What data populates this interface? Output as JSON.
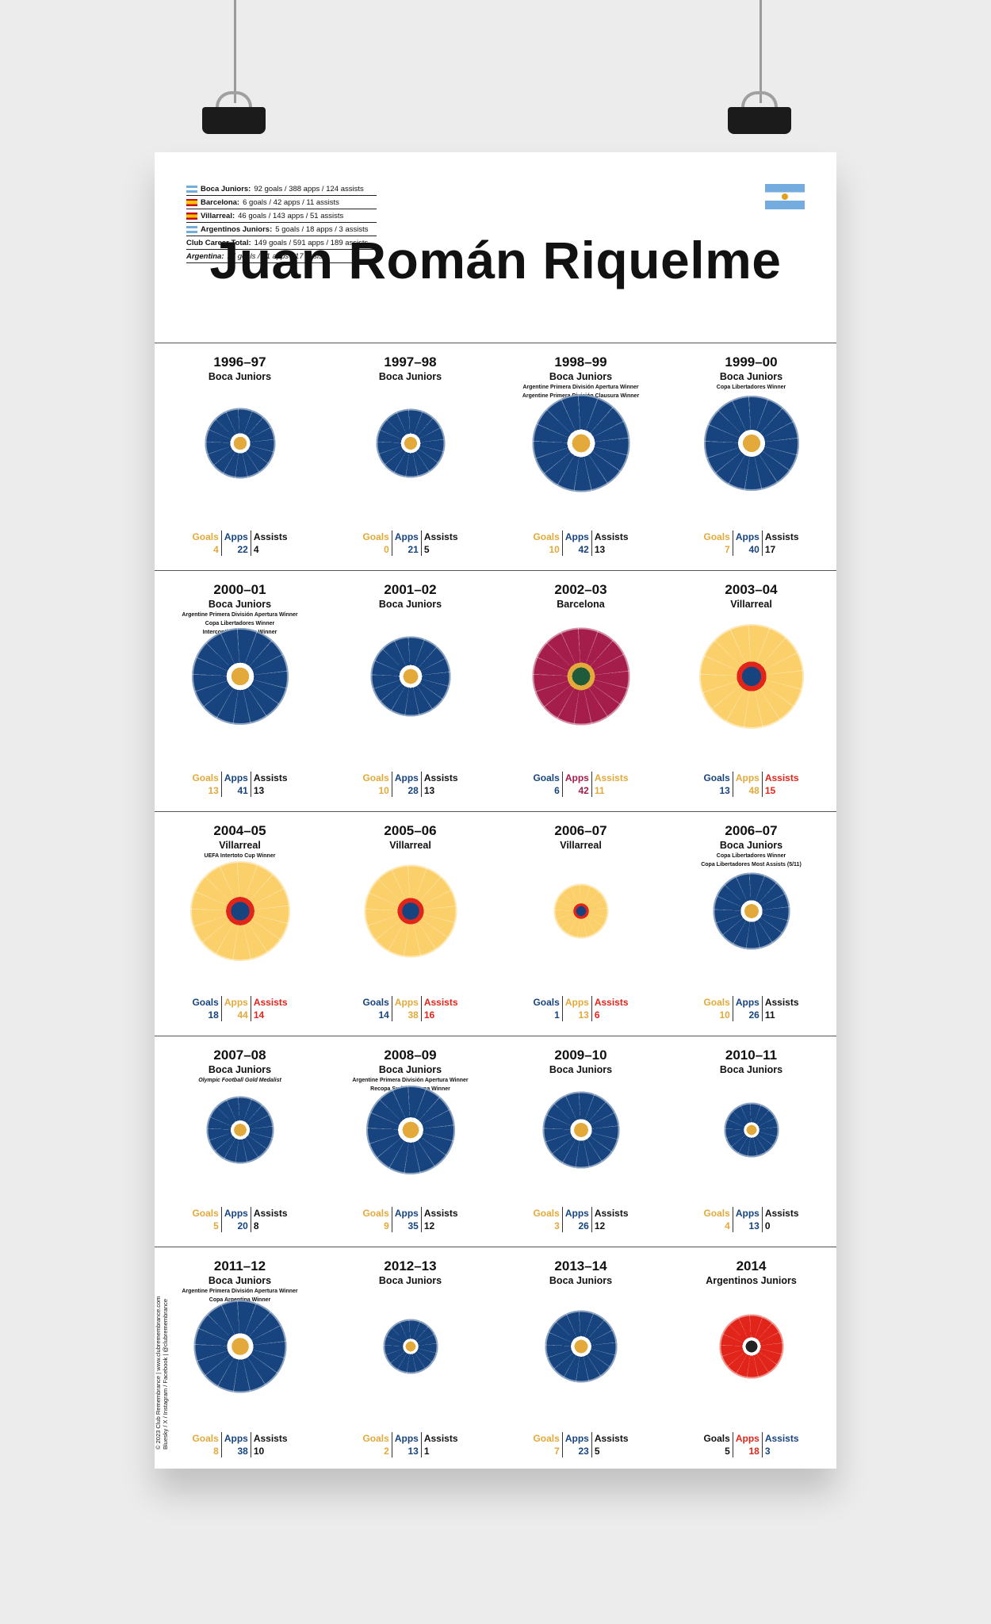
{
  "poster": {
    "name": "Juan Román Riquelme",
    "career": [
      {
        "club": "Boca Juniors:",
        "text": "92 goals / 388 apps / 124 assists",
        "flag": "ar"
      },
      {
        "club": "Barcelona:",
        "text": "6 goals / 42 apps / 11 assists",
        "flag": "es"
      },
      {
        "club": "Villarreal:",
        "text": "46 goals / 143 apps / 51 assists",
        "flag": "es"
      },
      {
        "club": "Argentinos Juniors:",
        "text": "5 goals / 18 apps / 3 assists",
        "flag": "ar"
      },
      {
        "club": "Club Career Total:",
        "text": "149 goals / 591 apps / 189 assists",
        "flag": ""
      },
      {
        "club": "Argentina:",
        "text": "17 goals / 51 apps / 17 assists",
        "flag": ""
      }
    ],
    "credit": "© 2023 Club Remembrance | www.clubremembrance.com",
    "credit2": "Bluesky / X / Instagram / Facebook | @clubremembrance"
  },
  "colors": {
    "boca_blue": "#17447f",
    "boca_gold": "#e3a93a",
    "barca_red": "#a51d4a",
    "villarreal_yellow": "#fbd06a",
    "red": "#e1251b",
    "white": "#ffffff"
  },
  "seasons": [
    {
      "season": "1996–97",
      "club": "Boca Juniors",
      "honours": [],
      "goals": 4,
      "apps": 22,
      "assists": 4,
      "ball": "boca"
    },
    {
      "season": "1997–98",
      "club": "Boca Juniors",
      "honours": [],
      "goals": 0,
      "apps": 21,
      "assists": 5,
      "ball": "boca"
    },
    {
      "season": "1998–99",
      "club": "Boca Juniors",
      "honours": [
        "Argentine Primera División Apertura Winner",
        "Argentine Primera División Clausura Winner"
      ],
      "goals": 10,
      "apps": 42,
      "assists": 13,
      "ball": "boca"
    },
    {
      "season": "1999–00",
      "club": "Boca Juniors",
      "honours": [
        "Copa Libertadores Winner"
      ],
      "goals": 7,
      "apps": 40,
      "assists": 17,
      "ball": "boca"
    },
    {
      "season": "2000–01",
      "club": "Boca Juniors",
      "honours": [
        "Argentine Primera División Apertura Winner",
        "Copa Libertadores Winner",
        "Intercontinental Cup Winner"
      ],
      "goals": 13,
      "apps": 41,
      "assists": 13,
      "ball": "boca"
    },
    {
      "season": "2001–02",
      "club": "Boca Juniors",
      "honours": [],
      "goals": 10,
      "apps": 28,
      "assists": 13,
      "ball": "boca"
    },
    {
      "season": "2002–03",
      "club": "Barcelona",
      "honours": [],
      "goals": 6,
      "apps": 42,
      "assists": 11,
      "ball": "barca"
    },
    {
      "season": "2003–04",
      "club": "Villarreal",
      "honours": [],
      "goals": 13,
      "apps": 48,
      "assists": 15,
      "ball": "villa"
    },
    {
      "season": "2004–05",
      "club": "Villarreal",
      "honours": [
        "UEFA Intertoto Cup Winner"
      ],
      "goals": 18,
      "apps": 44,
      "assists": 14,
      "ball": "villa"
    },
    {
      "season": "2005–06",
      "club": "Villarreal",
      "honours": [],
      "goals": 14,
      "apps": 38,
      "assists": 16,
      "ball": "villa"
    },
    {
      "season": "2006–07",
      "club": "Villarreal",
      "honours": [],
      "goals": 1,
      "apps": 13,
      "assists": 6,
      "ball": "villa"
    },
    {
      "season": "2006–07",
      "club": "Boca Juniors",
      "honours": [
        "Copa Libertadores Winner",
        "Copa Libertadores Most Assists (5/11)"
      ],
      "goals": 10,
      "apps": 26,
      "assists": 11,
      "ball": "boca"
    },
    {
      "season": "2007–08",
      "club": "Boca Juniors",
      "honours": [
        "Olympic Football Gold Medalist"
      ],
      "goals": 5,
      "apps": 20,
      "assists": 8,
      "ball": "boca"
    },
    {
      "season": "2008–09",
      "club": "Boca Juniors",
      "honours": [
        "Argentine Primera División Apertura Winner",
        "Recopa Sudamericana Winner"
      ],
      "goals": 9,
      "apps": 35,
      "assists": 12,
      "ball": "boca"
    },
    {
      "season": "2009–10",
      "club": "Boca Juniors",
      "honours": [],
      "goals": 3,
      "apps": 26,
      "assists": 12,
      "ball": "boca"
    },
    {
      "season": "2010–11",
      "club": "Boca Juniors",
      "honours": [],
      "goals": 4,
      "apps": 13,
      "assists": 0,
      "ball": "boca"
    },
    {
      "season": "2011–12",
      "club": "Boca Juniors",
      "honours": [
        "Argentine Primera División Apertura Winner",
        "Copa Argentina Winner"
      ],
      "goals": 8,
      "apps": 38,
      "assists": 10,
      "ball": "boca"
    },
    {
      "season": "2012–13",
      "club": "Boca Juniors",
      "honours": [],
      "goals": 2,
      "apps": 13,
      "assists": 1,
      "ball": "boca"
    },
    {
      "season": "2013–14",
      "club": "Boca Juniors",
      "honours": [],
      "goals": 7,
      "apps": 23,
      "assists": 5,
      "ball": "boca"
    },
    {
      "season": "2014",
      "club": "Argentinos Juniors",
      "honours": [],
      "goals": 5,
      "apps": 18,
      "assists": 3,
      "ball": "argentinos"
    }
  ],
  "labels": {
    "goals": "Goals",
    "apps": "Apps",
    "assists": "Assists"
  }
}
